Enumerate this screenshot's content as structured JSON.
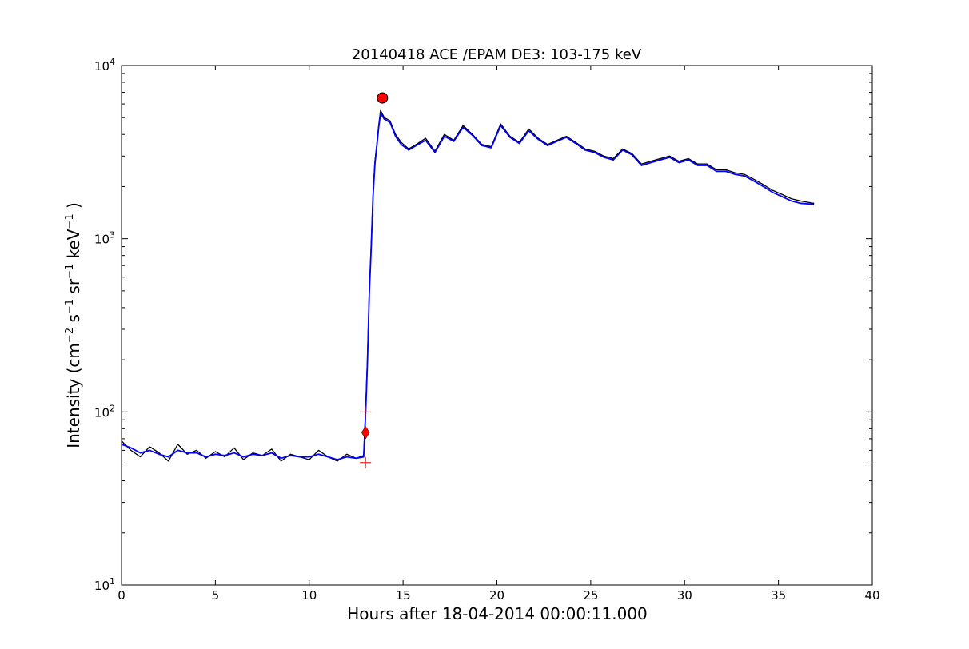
{
  "chart_data": {
    "type": "line",
    "title": "20140418 ACE /EPAM DE3: 103-175 keV",
    "xlabel": "Hours after 18-04-2014 00:00:11.000",
    "ylabel": {
      "prefix": "Intensity (cm",
      "exp1": "−2",
      "mid1": " s",
      "exp2": "−1",
      "mid2": " sr",
      "exp3": "−1",
      "mid3": " keV",
      "exp4": "−1",
      "suffix": " )"
    },
    "xlim": [
      0,
      40
    ],
    "ylim": [
      10,
      10000
    ],
    "yscale": "log",
    "xticks": [
      "0",
      "5",
      "10",
      "15",
      "20",
      "25",
      "30",
      "35",
      "40"
    ],
    "yticks": [
      {
        "base": "10",
        "exp": "1"
      },
      {
        "base": "10",
        "exp": "2"
      },
      {
        "base": "10",
        "exp": "3"
      },
      {
        "base": "10",
        "exp": "4"
      }
    ],
    "grid": false,
    "legend": "none",
    "colors": {
      "raw": "#000000",
      "smoothed": "#0000ff",
      "markers": "#ff0000"
    },
    "series": [
      {
        "x": [
          0,
          0.5,
          1,
          1.5,
          2,
          2.5,
          3,
          3.5,
          4,
          4.5,
          5,
          5.5,
          6,
          6.5,
          7,
          7.5,
          8,
          8.5,
          9,
          9.5,
          10,
          10.5,
          11,
          11.5,
          12,
          12.5,
          12.9,
          13.0,
          13.1,
          13.2,
          13.3,
          13.4,
          13.5,
          13.6,
          13.7,
          13.8,
          14.0,
          14.3,
          14.6,
          14.9,
          15.3,
          15.7,
          16.2,
          16.7,
          17.2,
          17.7,
          18.2,
          18.7,
          19.2,
          19.7,
          20.2,
          20.7,
          21.2,
          21.7,
          22.2,
          22.7,
          23.2,
          23.7,
          24.2,
          24.7,
          25.2,
          25.7,
          26.2,
          26.7,
          27.2,
          27.7,
          28.2,
          28.7,
          29.2,
          29.7,
          30.2,
          30.7,
          31.2,
          31.7,
          32.2,
          32.7,
          33.2,
          33.7,
          34.2,
          34.7,
          35.2,
          35.7,
          36.2,
          36.9
        ],
        "values": [
          68,
          60,
          55,
          63,
          58,
          52,
          65,
          57,
          60,
          54,
          59,
          55,
          62,
          53,
          58,
          56,
          61,
          52,
          57,
          55,
          53,
          60,
          55,
          52,
          57,
          54,
          56,
          100,
          200,
          500,
          900,
          1800,
          2800,
          3500,
          4500,
          5500,
          5000,
          4800,
          4000,
          3600,
          3300,
          3500,
          3800,
          3200,
          4000,
          3700,
          4500,
          4000,
          3500,
          3400,
          4600,
          3900,
          3600,
          4300,
          3800,
          3500,
          3700,
          3900,
          3600,
          3300,
          3200,
          3000,
          2900,
          3300,
          3100,
          2700,
          2800,
          2900,
          3000,
          2800,
          2900,
          2700,
          2700,
          2500,
          2500,
          2400,
          2350,
          2200,
          2050,
          1900,
          1800,
          1700,
          1650,
          1600
        ]
      },
      {
        "x": [
          0,
          0.5,
          1,
          1.5,
          2,
          2.5,
          3,
          3.5,
          4,
          4.5,
          5,
          5.5,
          6,
          6.5,
          7,
          7.5,
          8,
          8.5,
          9,
          9.5,
          10,
          10.5,
          11,
          11.5,
          12,
          12.5,
          12.9,
          13.0,
          13.1,
          13.2,
          13.3,
          13.4,
          13.5,
          13.6,
          13.7,
          13.8,
          14.0,
          14.3,
          14.6,
          14.9,
          15.3,
          15.7,
          16.2,
          16.7,
          17.2,
          17.7,
          18.2,
          18.7,
          19.2,
          19.7,
          20.2,
          20.7,
          21.2,
          21.7,
          22.2,
          22.7,
          23.2,
          23.7,
          24.2,
          24.7,
          25.2,
          25.7,
          26.2,
          26.7,
          27.2,
          27.7,
          28.2,
          28.7,
          29.2,
          29.7,
          30.2,
          30.7,
          31.2,
          31.7,
          32.2,
          32.7,
          33.2,
          33.7,
          34.2,
          34.7,
          35.2,
          35.7,
          36.2,
          36.9
        ],
        "values": [
          65,
          62,
          58,
          60,
          57,
          55,
          60,
          58,
          58,
          55,
          57,
          56,
          58,
          55,
          57,
          56,
          58,
          54,
          56,
          55,
          55,
          57,
          55,
          53,
          55,
          54,
          55,
          95,
          190,
          480,
          880,
          1750,
          2700,
          3400,
          4400,
          5300,
          4900,
          4700,
          3900,
          3500,
          3250,
          3450,
          3700,
          3150,
          3900,
          3650,
          4400,
          3950,
          3450,
          3350,
          4500,
          3850,
          3550,
          4200,
          3750,
          3450,
          3650,
          3850,
          3550,
          3250,
          3150,
          2950,
          2850,
          3250,
          3050,
          2650,
          2750,
          2850,
          2950,
          2750,
          2850,
          2650,
          2650,
          2450,
          2450,
          2350,
          2300,
          2150,
          2000,
          1850,
          1750,
          1650,
          1600,
          1580
        ]
      }
    ],
    "markers": [
      {
        "shape": "circle",
        "x": 13.9,
        "y": 6500
      },
      {
        "shape": "diamond",
        "x": 13.0,
        "y": 76
      },
      {
        "shape": "plus",
        "x": 13.0,
        "y": 100
      },
      {
        "shape": "plus",
        "x": 13.0,
        "y": 51
      }
    ]
  }
}
